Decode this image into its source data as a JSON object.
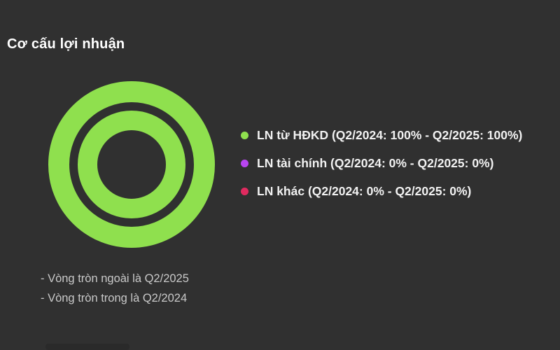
{
  "page": {
    "background": "#303030",
    "title": "Cơ cấu lợi nhuận"
  },
  "chart_data": {
    "type": "pie",
    "subtype": "concentric-double-donut",
    "title": "Cơ cấu lợi nhuận",
    "categories": [
      "LN từ HĐKD",
      "LN tài chính",
      "LN khác"
    ],
    "series": [
      {
        "name": "Q2/2024",
        "ring": "inner",
        "values": [
          100,
          0,
          0
        ]
      },
      {
        "name": "Q2/2025",
        "ring": "outer",
        "values": [
          100,
          0,
          0
        ]
      }
    ],
    "colors": [
      "#8FE04E",
      "#B845F0",
      "#E02A5F"
    ],
    "legend_position": "right",
    "legend": [
      {
        "label": "LN từ HĐKD (Q2/2024: 100% - Q2/2025: 100%)",
        "color": "#8FE04E"
      },
      {
        "label": "LN tài chính (Q2/2024: 0% - Q2/2025: 0%)",
        "color": "#B845F0"
      },
      {
        "label": "LN khác (Q2/2024: 0% - Q2/2025: 0%)",
        "color": "#E02A5F"
      }
    ],
    "notes": [
      "- Vòng tròn ngoài là Q2/2025",
      "- Vòng tròn trong là Q2/2024"
    ]
  }
}
